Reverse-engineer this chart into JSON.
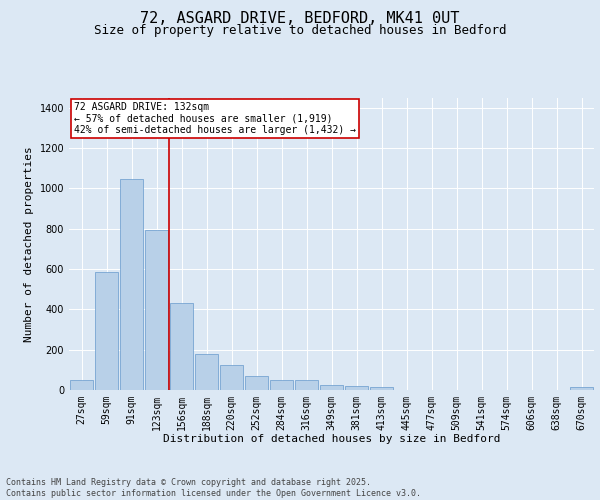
{
  "title": "72, ASGARD DRIVE, BEDFORD, MK41 0UT",
  "subtitle": "Size of property relative to detached houses in Bedford",
  "xlabel": "Distribution of detached houses by size in Bedford",
  "ylabel": "Number of detached properties",
  "categories": [
    "27sqm",
    "59sqm",
    "91sqm",
    "123sqm",
    "156sqm",
    "188sqm",
    "220sqm",
    "252sqm",
    "284sqm",
    "316sqm",
    "349sqm",
    "381sqm",
    "413sqm",
    "445sqm",
    "477sqm",
    "509sqm",
    "541sqm",
    "574sqm",
    "606sqm",
    "638sqm",
    "670sqm"
  ],
  "values": [
    50,
    585,
    1045,
    795,
    430,
    180,
    125,
    70,
    50,
    50,
    25,
    20,
    15,
    0,
    0,
    0,
    0,
    0,
    0,
    0,
    15
  ],
  "bar_color": "#b8d0e8",
  "bar_edge_color": "#6699cc",
  "vline_color": "#cc0000",
  "annotation_text": "72 ASGARD DRIVE: 132sqm\n← 57% of detached houses are smaller (1,919)\n42% of semi-detached houses are larger (1,432) →",
  "annotation_box_color": "#ffffff",
  "annotation_box_edge": "#cc0000",
  "background_color": "#dce8f4",
  "plot_bg_color": "#dce8f4",
  "footer_text": "Contains HM Land Registry data © Crown copyright and database right 2025.\nContains public sector information licensed under the Open Government Licence v3.0.",
  "ylim": [
    0,
    1450
  ],
  "yticks": [
    0,
    200,
    400,
    600,
    800,
    1000,
    1200,
    1400
  ],
  "title_fontsize": 11,
  "subtitle_fontsize": 9,
  "axis_fontsize": 8,
  "tick_fontsize": 7,
  "footer_fontsize": 6
}
